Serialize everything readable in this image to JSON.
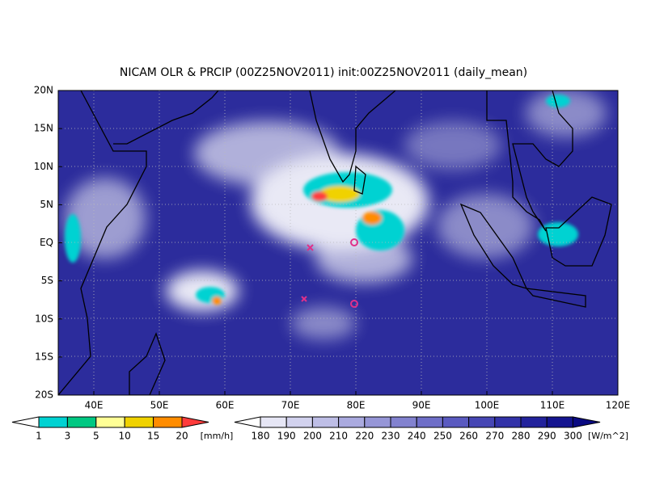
{
  "title": "NICAM OLR & PRCIP (00Z25NOV2011) init:00Z25NOV2011 (daily_mean)",
  "lat_labels": [
    "20N",
    "15N",
    "10N",
    "5N",
    "EQ",
    "5S",
    "10S",
    "15S",
    "20S"
  ],
  "lon_labels": [
    "40E",
    "50E",
    "60E",
    "70E",
    "80E",
    "90E",
    "100E",
    "110E",
    "120E"
  ],
  "precip_colorbar": {
    "labels": [
      "1",
      "3",
      "5",
      "10",
      "15",
      "20"
    ],
    "unit": "[mm/h]",
    "colors": [
      "#ffffff",
      "#00d2d2",
      "#00c882",
      "#ffff96",
      "#f0d200",
      "#ff8c00",
      "#ff3c3c"
    ]
  },
  "olr_colorbar": {
    "labels": [
      "180",
      "190",
      "200",
      "210",
      "220",
      "230",
      "240",
      "250",
      "260",
      "270",
      "280",
      "290",
      "300"
    ],
    "unit": "[W/m^2]",
    "colors": [
      "#ffffff",
      "#e6e6f5",
      "#d2d2ee",
      "#bebee6",
      "#aaaadf",
      "#9696d7",
      "#8282cf",
      "#6e6ec8",
      "#5a5ac0",
      "#4646b4",
      "#3232a8",
      "#22229c",
      "#141490",
      "#0a0a82"
    ]
  }
}
